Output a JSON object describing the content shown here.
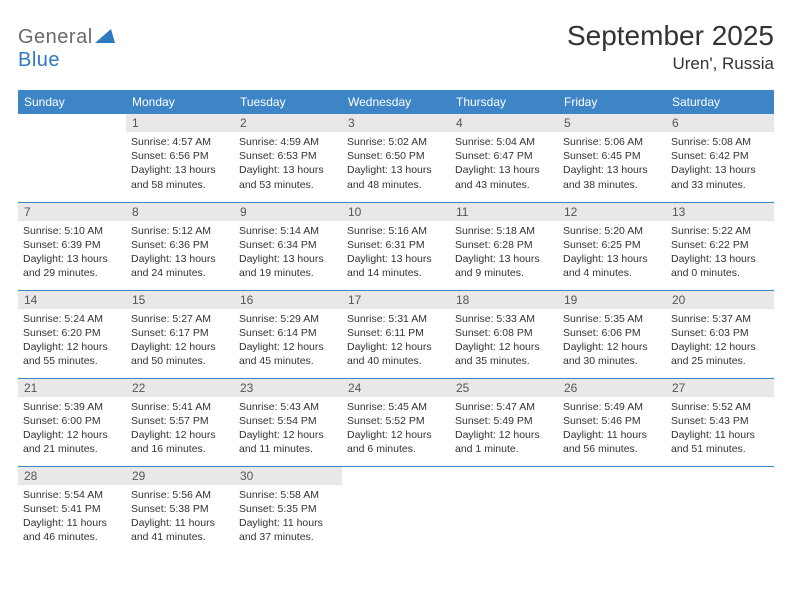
{
  "logo": {
    "text1": "General",
    "text2": "Blue",
    "triangle_color": "#2f7abf"
  },
  "title": "September 2025",
  "location": "Uren', Russia",
  "colors": {
    "header_bg": "#3d85c6",
    "header_fg": "#ffffff",
    "daynum_bg": "#e8e8e8",
    "border": "#3d85c6",
    "text": "#333333"
  },
  "weekdays": [
    "Sunday",
    "Monday",
    "Tuesday",
    "Wednesday",
    "Thursday",
    "Friday",
    "Saturday"
  ],
  "weeks": [
    [
      null,
      {
        "n": "1",
        "sr": "4:57 AM",
        "ss": "6:56 PM",
        "dl": "13 hours and 58 minutes."
      },
      {
        "n": "2",
        "sr": "4:59 AM",
        "ss": "6:53 PM",
        "dl": "13 hours and 53 minutes."
      },
      {
        "n": "3",
        "sr": "5:02 AM",
        "ss": "6:50 PM",
        "dl": "13 hours and 48 minutes."
      },
      {
        "n": "4",
        "sr": "5:04 AM",
        "ss": "6:47 PM",
        "dl": "13 hours and 43 minutes."
      },
      {
        "n": "5",
        "sr": "5:06 AM",
        "ss": "6:45 PM",
        "dl": "13 hours and 38 minutes."
      },
      {
        "n": "6",
        "sr": "5:08 AM",
        "ss": "6:42 PM",
        "dl": "13 hours and 33 minutes."
      }
    ],
    [
      {
        "n": "7",
        "sr": "5:10 AM",
        "ss": "6:39 PM",
        "dl": "13 hours and 29 minutes."
      },
      {
        "n": "8",
        "sr": "5:12 AM",
        "ss": "6:36 PM",
        "dl": "13 hours and 24 minutes."
      },
      {
        "n": "9",
        "sr": "5:14 AM",
        "ss": "6:34 PM",
        "dl": "13 hours and 19 minutes."
      },
      {
        "n": "10",
        "sr": "5:16 AM",
        "ss": "6:31 PM",
        "dl": "13 hours and 14 minutes."
      },
      {
        "n": "11",
        "sr": "5:18 AM",
        "ss": "6:28 PM",
        "dl": "13 hours and 9 minutes."
      },
      {
        "n": "12",
        "sr": "5:20 AM",
        "ss": "6:25 PM",
        "dl": "13 hours and 4 minutes."
      },
      {
        "n": "13",
        "sr": "5:22 AM",
        "ss": "6:22 PM",
        "dl": "13 hours and 0 minutes."
      }
    ],
    [
      {
        "n": "14",
        "sr": "5:24 AM",
        "ss": "6:20 PM",
        "dl": "12 hours and 55 minutes."
      },
      {
        "n": "15",
        "sr": "5:27 AM",
        "ss": "6:17 PM",
        "dl": "12 hours and 50 minutes."
      },
      {
        "n": "16",
        "sr": "5:29 AM",
        "ss": "6:14 PM",
        "dl": "12 hours and 45 minutes."
      },
      {
        "n": "17",
        "sr": "5:31 AM",
        "ss": "6:11 PM",
        "dl": "12 hours and 40 minutes."
      },
      {
        "n": "18",
        "sr": "5:33 AM",
        "ss": "6:08 PM",
        "dl": "12 hours and 35 minutes."
      },
      {
        "n": "19",
        "sr": "5:35 AM",
        "ss": "6:06 PM",
        "dl": "12 hours and 30 minutes."
      },
      {
        "n": "20",
        "sr": "5:37 AM",
        "ss": "6:03 PM",
        "dl": "12 hours and 25 minutes."
      }
    ],
    [
      {
        "n": "21",
        "sr": "5:39 AM",
        "ss": "6:00 PM",
        "dl": "12 hours and 21 minutes."
      },
      {
        "n": "22",
        "sr": "5:41 AM",
        "ss": "5:57 PM",
        "dl": "12 hours and 16 minutes."
      },
      {
        "n": "23",
        "sr": "5:43 AM",
        "ss": "5:54 PM",
        "dl": "12 hours and 11 minutes."
      },
      {
        "n": "24",
        "sr": "5:45 AM",
        "ss": "5:52 PM",
        "dl": "12 hours and 6 minutes."
      },
      {
        "n": "25",
        "sr": "5:47 AM",
        "ss": "5:49 PM",
        "dl": "12 hours and 1 minute."
      },
      {
        "n": "26",
        "sr": "5:49 AM",
        "ss": "5:46 PM",
        "dl": "11 hours and 56 minutes."
      },
      {
        "n": "27",
        "sr": "5:52 AM",
        "ss": "5:43 PM",
        "dl": "11 hours and 51 minutes."
      }
    ],
    [
      {
        "n": "28",
        "sr": "5:54 AM",
        "ss": "5:41 PM",
        "dl": "11 hours and 46 minutes."
      },
      {
        "n": "29",
        "sr": "5:56 AM",
        "ss": "5:38 PM",
        "dl": "11 hours and 41 minutes."
      },
      {
        "n": "30",
        "sr": "5:58 AM",
        "ss": "5:35 PM",
        "dl": "11 hours and 37 minutes."
      },
      null,
      null,
      null,
      null
    ]
  ],
  "labels": {
    "sunrise": "Sunrise:",
    "sunset": "Sunset:",
    "daylight": "Daylight:"
  }
}
